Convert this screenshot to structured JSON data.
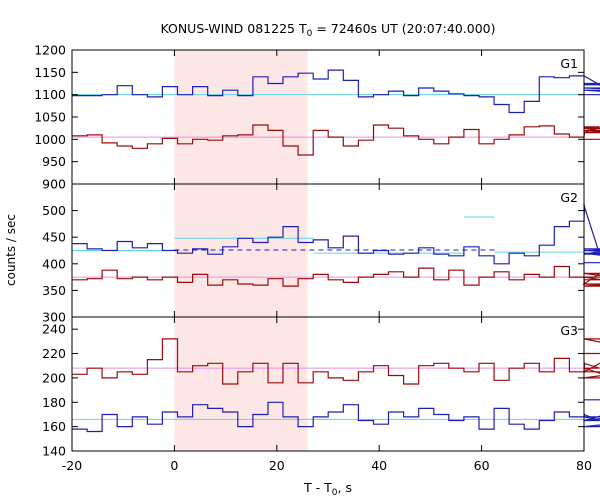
{
  "chart_data": {
    "type": "line",
    "title_prefix": "KONUS-WIND 081225 T",
    "title_sub": "0",
    "title_suffix": " = 72460s UT (20:07:40.000)",
    "xlabel_prefix": "T - T",
    "xlabel_sub": "0",
    "xlabel_suffix": ", s",
    "ylabel": "counts / sec",
    "xlim": [
      -20,
      80
    ],
    "xticks": [
      -20,
      0,
      20,
      40,
      60,
      80
    ],
    "highlight_interval": [
      0,
      26
    ],
    "colors": {
      "blue": "#1f1fb4",
      "red": "#9b0a0a",
      "cyan": "#5fd3e6",
      "pink": "#e890e0",
      "shade": "#fde6e6",
      "dashed": "#1f1fb4"
    },
    "panels": [
      {
        "label": "G1",
        "ylim": [
          900,
          1200
        ],
        "yticks": [
          900,
          950,
          1000,
          1050,
          1100,
          1150,
          1200
        ],
        "bin_start": -20,
        "bin_width": 2.944,
        "blue": [
          1098,
          1098,
          1100,
          1120,
          1100,
          1095,
          1118,
          1100,
          1118,
          1098,
          1110,
          1098,
          1140,
          1125,
          1140,
          1148,
          1135,
          1155,
          1132,
          1095,
          1100,
          1108,
          1098,
          1115,
          1108,
          1102,
          1098,
          1095,
          1078,
          1060,
          1085,
          1140,
          1138,
          1142,
          1142,
          1122,
          1125,
          1115,
          1110,
          1100
        ],
        "red": [
          1008,
          1010,
          992,
          985,
          980,
          990,
          1002,
          990,
          1000,
          998,
          1008,
          1010,
          1032,
          1020,
          985,
          965,
          1020,
          1005,
          985,
          998,
          1032,
          1025,
          1008,
          1000,
          990,
          1005,
          1022,
          990,
          1000,
          1010,
          1028,
          1030,
          1012,
          1005,
          1015,
          1028,
          1020,
          1015,
          1025,
          1000
        ],
        "fit_blue": [
          {
            "x0": -20,
            "x1": 80,
            "y": 1100
          }
        ],
        "fit_red": [
          {
            "x0": -20,
            "x1": 80,
            "y": 1005
          }
        ]
      },
      {
        "label": "G2",
        "ylim": [
          300,
          550
        ],
        "yticks": [
          300,
          350,
          400,
          450,
          500
        ],
        "bin_start": -20,
        "bin_width": 2.944,
        "blue": [
          438,
          428,
          425,
          442,
          430,
          438,
          425,
          420,
          428,
          418,
          432,
          448,
          440,
          450,
          470,
          440,
          445,
          430,
          452,
          420,
          425,
          418,
          420,
          430,
          418,
          415,
          432,
          415,
          400,
          420,
          415,
          435,
          470,
          480,
          510,
          418,
          428,
          425,
          420,
          402
        ],
        "red": [
          370,
          372,
          388,
          372,
          375,
          370,
          375,
          365,
          380,
          360,
          370,
          362,
          360,
          372,
          358,
          372,
          380,
          370,
          365,
          375,
          380,
          385,
          375,
          392,
          370,
          388,
          360,
          375,
          385,
          370,
          380,
          375,
          395,
          375,
          362,
          382,
          375,
          362,
          358,
          370
        ],
        "fit_blue": [
          {
            "x0": -20,
            "x1": 0,
            "y": 425
          },
          {
            "x0": 0,
            "x1": 27.2,
            "y": 448
          },
          {
            "x0": 27.2,
            "x1": 56.5,
            "y": 420
          },
          {
            "x0": 56.5,
            "x1": 62.5,
            "y": 488
          },
          {
            "x0": 62.5,
            "x1": 80,
            "y": 422
          }
        ],
        "fit_red": [
          {
            "x0": -20,
            "x1": 80,
            "y": 375
          }
        ],
        "dashed": [
          {
            "x0": 0,
            "x1": 62.5,
            "y": 426
          }
        ]
      },
      {
        "label": "G3",
        "ylim": [
          140,
          250
        ],
        "yticks": [
          140,
          160,
          180,
          200,
          220,
          240
        ],
        "bin_start": -20,
        "bin_width": 2.944,
        "blue": [
          158,
          156,
          170,
          160,
          168,
          162,
          172,
          168,
          178,
          175,
          172,
          160,
          170,
          180,
          168,
          160,
          168,
          172,
          178,
          165,
          162,
          172,
          168,
          175,
          170,
          165,
          168,
          158,
          175,
          162,
          158,
          165,
          172,
          168,
          170,
          165,
          168,
          160,
          165,
          182
        ],
        "red": [
          203,
          208,
          200,
          205,
          203,
          215,
          232,
          205,
          210,
          212,
          195,
          205,
          212,
          196,
          212,
          196,
          205,
          200,
          198,
          205,
          210,
          202,
          195,
          210,
          212,
          208,
          205,
          212,
          198,
          208,
          212,
          205,
          216,
          205,
          212,
          208,
          200,
          205,
          232,
          220
        ],
        "fit_blue": [
          {
            "x0": -20,
            "x1": 80,
            "y": 166
          }
        ],
        "fit_red": [
          {
            "x0": -20,
            "x1": 80,
            "y": 208
          }
        ]
      }
    ]
  }
}
